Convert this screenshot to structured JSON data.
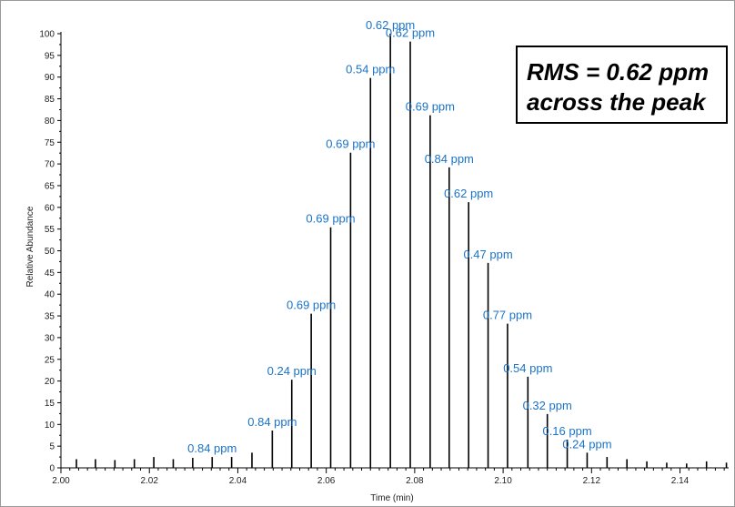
{
  "chart_data": {
    "type": "bar",
    "title": "",
    "xlabel": "Time (min)",
    "ylabel": "Relative Abundance",
    "xlim": [
      2.0,
      2.151
    ],
    "ylim": [
      0,
      100
    ],
    "xticks": [
      "2.00",
      "2.02",
      "2.04",
      "2.06",
      "2.08",
      "2.10",
      "2.12",
      "2.14"
    ],
    "yticks": [
      "0",
      "5",
      "10",
      "15",
      "20",
      "25",
      "30",
      "35",
      "40",
      "45",
      "50",
      "55",
      "60",
      "65",
      "70",
      "75",
      "80",
      "85",
      "90",
      "95",
      "100"
    ],
    "bar_color": "#000000",
    "label_color": "#1a73c8",
    "bars": [
      {
        "x": 2.0035,
        "y": 2.0,
        "label": ""
      },
      {
        "x": 2.0078,
        "y": 2.0,
        "label": ""
      },
      {
        "x": 2.0122,
        "y": 1.8,
        "label": ""
      },
      {
        "x": 2.0166,
        "y": 2.0,
        "label": ""
      },
      {
        "x": 2.021,
        "y": 2.5,
        "label": ""
      },
      {
        "x": 2.0254,
        "y": 2.0,
        "label": ""
      },
      {
        "x": 2.0298,
        "y": 2.3,
        "label": ""
      },
      {
        "x": 2.0342,
        "y": 2.5,
        "label": "0.84 ppm"
      },
      {
        "x": 2.0386,
        "y": 2.5,
        "label": ""
      },
      {
        "x": 2.0432,
        "y": 3.5,
        "label": ""
      },
      {
        "x": 2.0478,
        "y": 8.6,
        "label": "0.84 ppm"
      },
      {
        "x": 2.0522,
        "y": 20.3,
        "label": "0.24 ppm"
      },
      {
        "x": 2.0566,
        "y": 35.5,
        "label": "0.69 ppm"
      },
      {
        "x": 2.061,
        "y": 55.4,
        "label": "0.69 ppm"
      },
      {
        "x": 2.0655,
        "y": 72.6,
        "label": "0.69 ppm"
      },
      {
        "x": 2.07,
        "y": 89.8,
        "label": "0.54 ppm"
      },
      {
        "x": 2.0745,
        "y": 100.0,
        "label": "0.62 ppm"
      },
      {
        "x": 2.079,
        "y": 98.2,
        "label": "0.62 ppm"
      },
      {
        "x": 2.0835,
        "y": 81.2,
        "label": "0.69 ppm"
      },
      {
        "x": 2.0878,
        "y": 69.2,
        "label": "0.84 ppm"
      },
      {
        "x": 2.0922,
        "y": 61.2,
        "label": "0.62 ppm"
      },
      {
        "x": 2.0966,
        "y": 47.2,
        "label": "0.47 ppm"
      },
      {
        "x": 2.101,
        "y": 33.2,
        "label": "0.77 ppm"
      },
      {
        "x": 2.1056,
        "y": 21.0,
        "label": "0.54 ppm"
      },
      {
        "x": 2.11,
        "y": 12.4,
        "label": "0.32 ppm"
      },
      {
        "x": 2.1145,
        "y": 6.5,
        "label": "0.16 ppm"
      },
      {
        "x": 2.119,
        "y": 3.5,
        "label": "0.24 ppm"
      },
      {
        "x": 2.1235,
        "y": 2.5,
        "label": ""
      },
      {
        "x": 2.128,
        "y": 2.0,
        "label": ""
      },
      {
        "x": 2.1325,
        "y": 1.5,
        "label": ""
      },
      {
        "x": 2.137,
        "y": 1.2,
        "label": ""
      },
      {
        "x": 2.1415,
        "y": 1.0,
        "label": ""
      },
      {
        "x": 2.146,
        "y": 1.5,
        "label": ""
      },
      {
        "x": 2.1505,
        "y": 1.2,
        "label": ""
      }
    ],
    "annotation": {
      "line1": "RMS = 0.62 ppm",
      "line2": "across the peak"
    },
    "grid": false
  }
}
